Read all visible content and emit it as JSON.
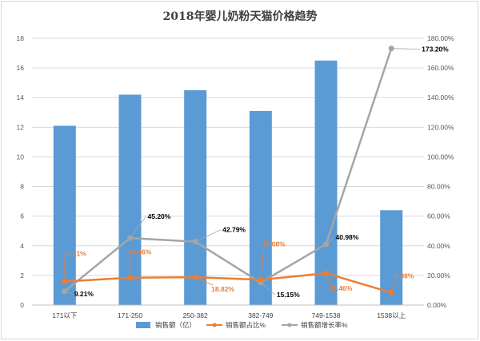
{
  "chart_data": {
    "type": "bar+line",
    "title": "2018年婴儿奶粉天猫价格趋势",
    "categories": [
      "171以下",
      "171-250",
      "250-382",
      "382-749",
      "749-1538",
      "1538以上"
    ],
    "y_left": {
      "min": 0,
      "max": 18,
      "step": 2,
      "ticks": [
        "0",
        "2",
        "4",
        "6",
        "8",
        "10",
        "12",
        "14",
        "16",
        "18"
      ]
    },
    "y_right": {
      "min": 0,
      "max": 180,
      "step": 20,
      "ticks": [
        "0.00%",
        "20.00%",
        "40.00%",
        "60.00%",
        "80.00%",
        "100.00%",
        "120.00%",
        "140.00%",
        "160.00%",
        "180.00%"
      ]
    },
    "series": [
      {
        "name": "销售额（亿）",
        "type": "bar",
        "axis": "left",
        "color": "#5b9bd5",
        "values": [
          12.1,
          14.2,
          14.5,
          13.1,
          16.5,
          6.4
        ]
      },
      {
        "name": "销售额占比%",
        "type": "line",
        "axis": "right",
        "color": "#ed7d31",
        "values": [
          15.91,
          18.46,
          18.82,
          17.08,
          21.46,
          8.38
        ],
        "labels": [
          "15.91%",
          "18.46%",
          "18.82%",
          "17.08%",
          "21.46%",
          "8.38%"
        ]
      },
      {
        "name": "销售额增长率%",
        "type": "line",
        "axis": "right",
        "color": "#a5a5a5",
        "values": [
          9.21,
          45.2,
          42.79,
          15.15,
          40.98,
          173.2
        ],
        "labels": [
          "9.21%",
          "45.20%",
          "42.79%",
          "15.15%",
          "40.98%",
          "173.20%"
        ]
      }
    ],
    "legend_position": "bottom",
    "grid": true
  }
}
